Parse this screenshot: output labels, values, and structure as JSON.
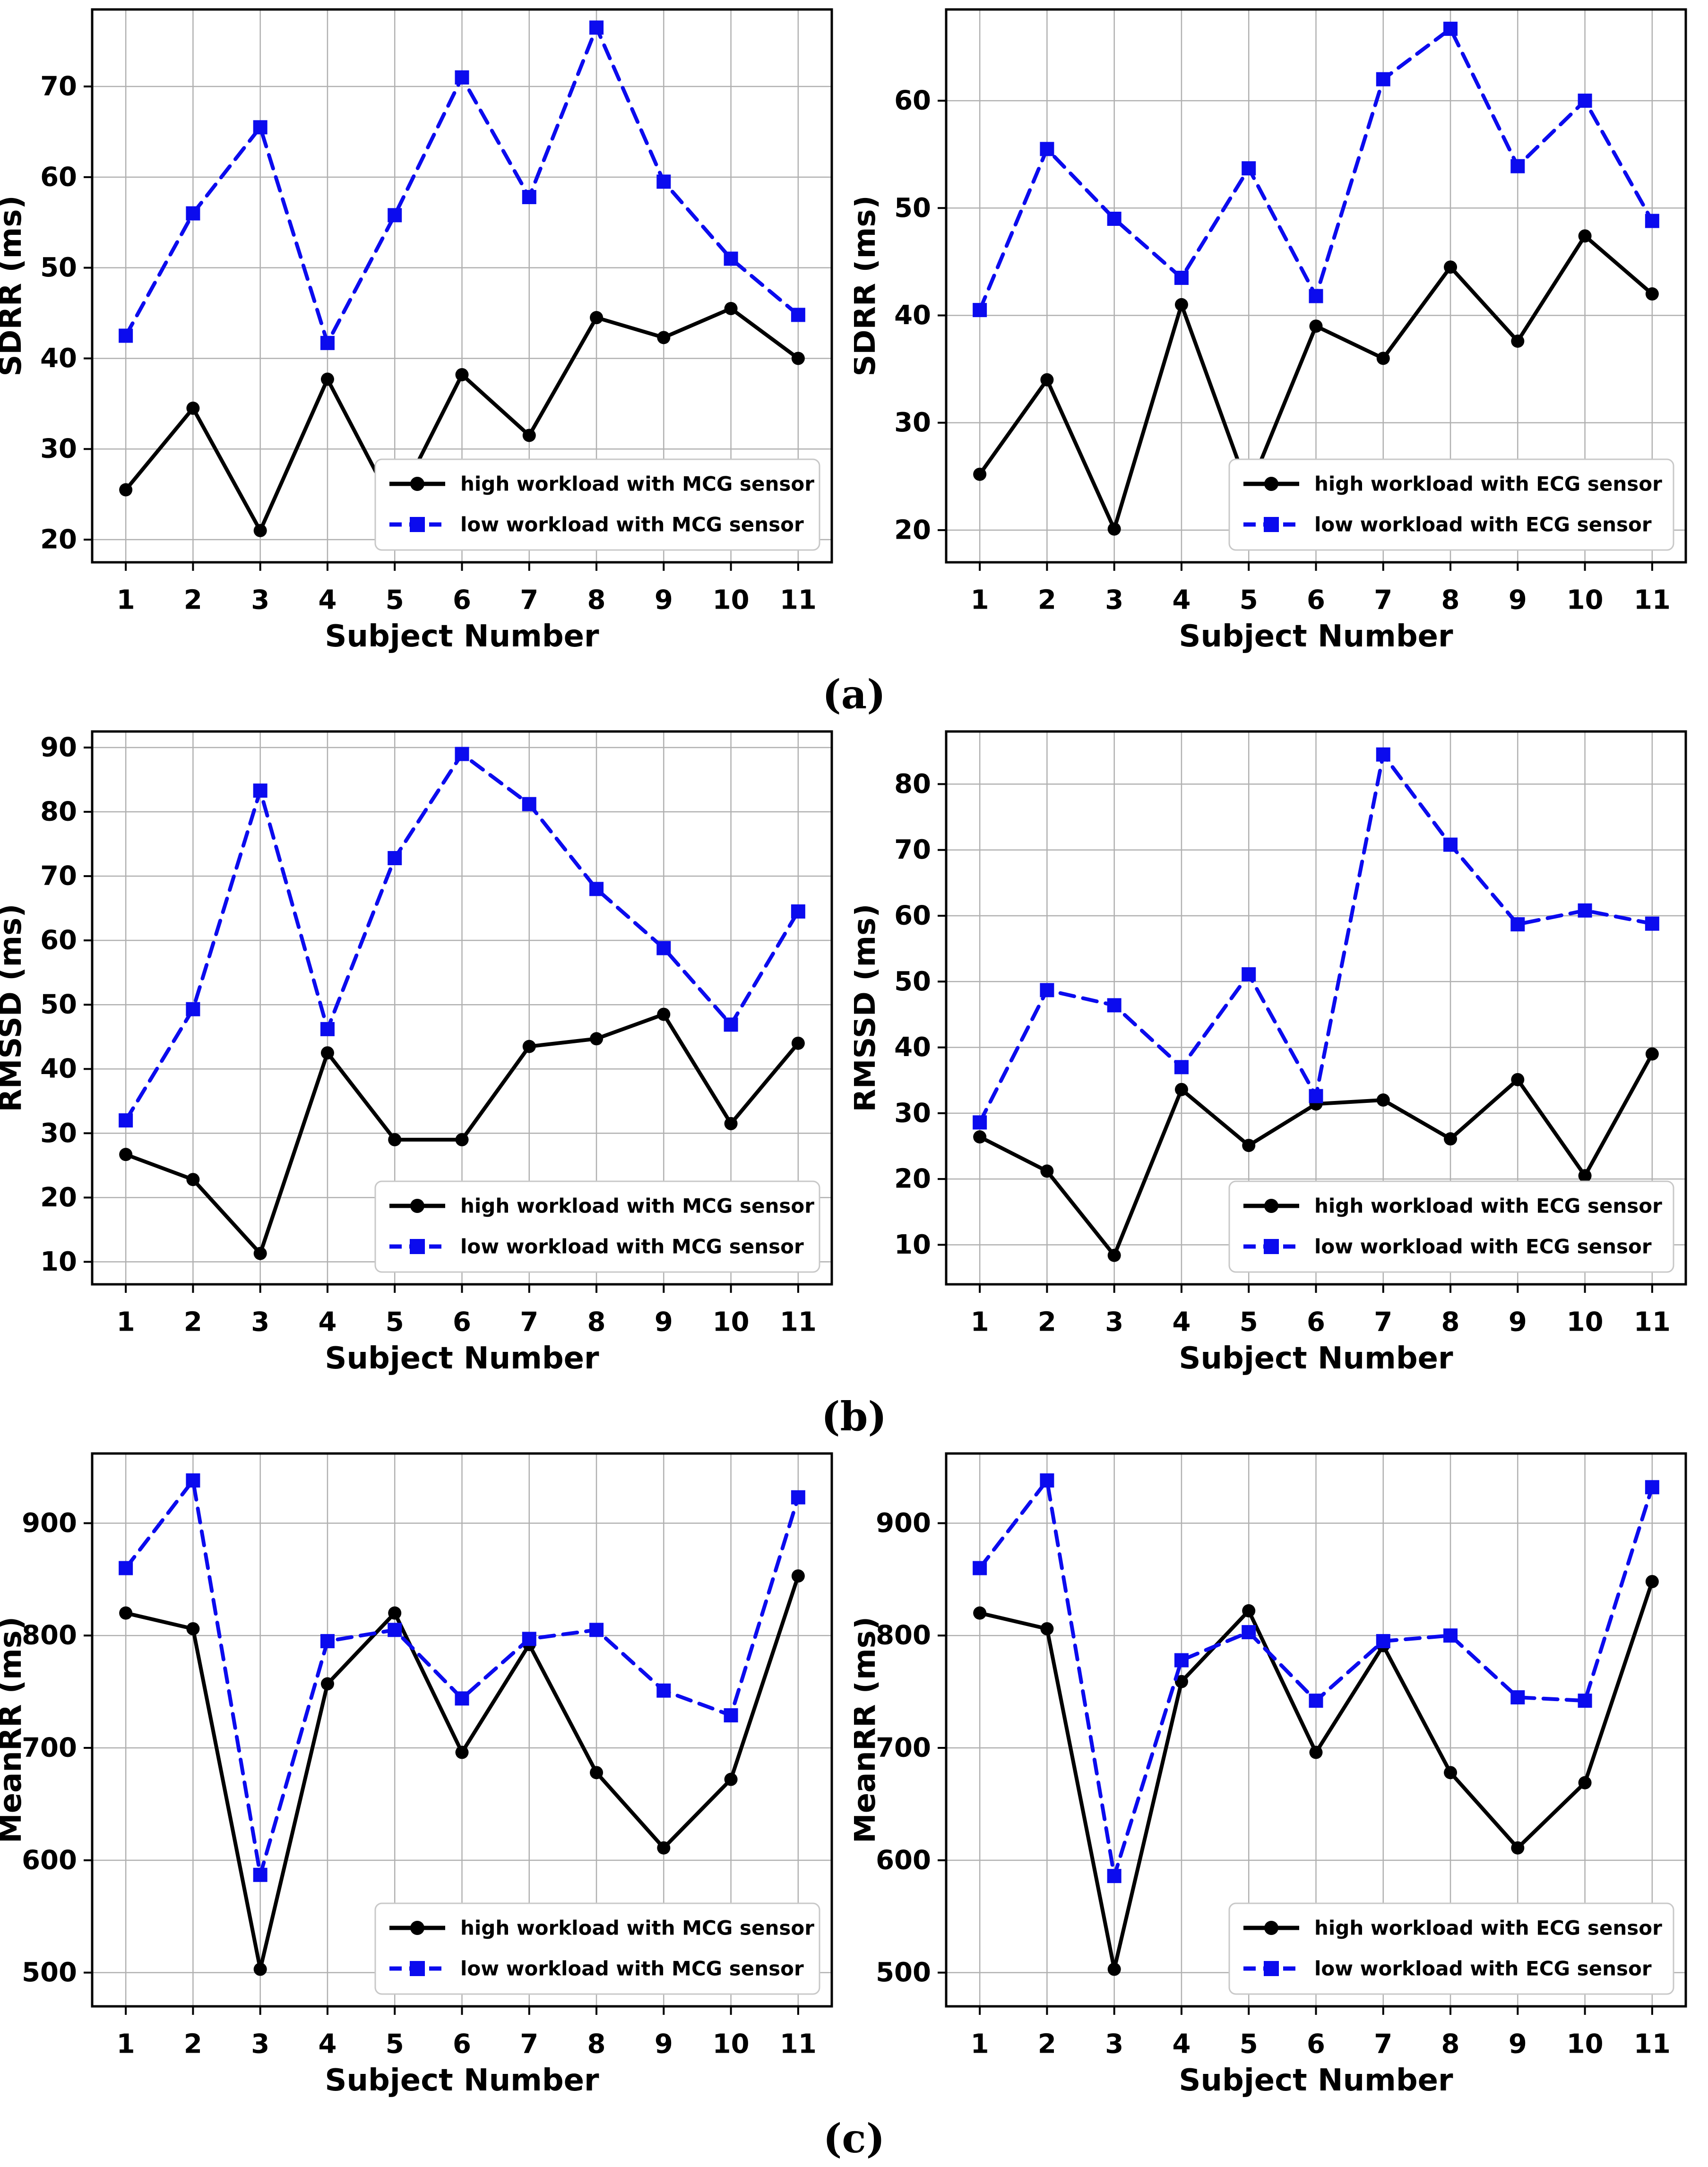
{
  "captions": {
    "a": "(a)",
    "b": "(b)",
    "c": "(c)"
  },
  "colors": {
    "high_workload": "#000000",
    "low_workload": "#0b0bee",
    "grid": "#b0b0b0",
    "spine": "#000000",
    "legend_border": "#c8c8c8"
  },
  "chart_data": [
    {
      "id": "sdrr-mcg",
      "type": "line",
      "title": "",
      "xlabel": "Subject Number",
      "ylabel": "SDRR (ms)",
      "x": [
        1,
        2,
        3,
        4,
        5,
        6,
        7,
        8,
        9,
        10,
        11
      ],
      "xlim": [
        0.5,
        11.5
      ],
      "ylim": [
        17.5,
        78.5
      ],
      "yticks": [
        20,
        30,
        40,
        50,
        60,
        70
      ],
      "grid": true,
      "legend_position": "lower right",
      "series": [
        {
          "name": "high workload with MCG sensor",
          "color": "#000000",
          "linestyle": "solid",
          "marker": "circle",
          "values": [
            25.5,
            34.5,
            21,
            37.7,
            23.5,
            38.2,
            31.5,
            44.5,
            42.3,
            45.5,
            40
          ]
        },
        {
          "name": "low workload with MCG sensor",
          "color": "#0b0bee",
          "linestyle": "dashed",
          "marker": "square",
          "values": [
            42.5,
            56,
            65.5,
            41.7,
            55.8,
            71,
            57.8,
            76.5,
            59.5,
            51,
            44.8
          ]
        }
      ]
    },
    {
      "id": "sdrr-ecg",
      "type": "line",
      "title": "",
      "xlabel": "Subject Number",
      "ylabel": "SDRR (ms)",
      "x": [
        1,
        2,
        3,
        4,
        5,
        6,
        7,
        8,
        9,
        10,
        11
      ],
      "xlim": [
        0.5,
        11.5
      ],
      "ylim": [
        17,
        68.5
      ],
      "yticks": [
        20,
        30,
        40,
        50,
        60
      ],
      "grid": true,
      "legend_position": "lower right",
      "series": [
        {
          "name": "high workload with ECG sensor",
          "color": "#000000",
          "linestyle": "solid",
          "marker": "circle",
          "values": [
            25.2,
            34,
            20.1,
            41,
            23.7,
            39,
            36,
            44.5,
            37.6,
            47.4,
            42
          ]
        },
        {
          "name": "low workload with ECG sensor",
          "color": "#0b0bee",
          "linestyle": "dashed",
          "marker": "square",
          "values": [
            40.5,
            55.5,
            49,
            43.5,
            53.7,
            41.8,
            62,
            66.7,
            53.9,
            60,
            48.8
          ]
        }
      ]
    },
    {
      "id": "rmssd-mcg",
      "type": "line",
      "title": "",
      "xlabel": "Subject Number",
      "ylabel": "RMSSD (ms)",
      "x": [
        1,
        2,
        3,
        4,
        5,
        6,
        7,
        8,
        9,
        10,
        11
      ],
      "xlim": [
        0.5,
        11.5
      ],
      "ylim": [
        6.5,
        92.5
      ],
      "yticks": [
        10,
        20,
        30,
        40,
        50,
        60,
        70,
        80,
        90
      ],
      "grid": true,
      "legend_position": "lower right",
      "series": [
        {
          "name": "high workload with MCG sensor",
          "color": "#000000",
          "linestyle": "solid",
          "marker": "circle",
          "values": [
            26.7,
            22.8,
            11.3,
            42.5,
            29,
            29,
            43.5,
            44.7,
            48.5,
            31.5,
            44
          ]
        },
        {
          "name": "low workload with MCG sensor",
          "color": "#0b0bee",
          "linestyle": "dashed",
          "marker": "square",
          "values": [
            32,
            49.3,
            83.3,
            46.2,
            72.8,
            89,
            81.2,
            68,
            58.8,
            46.9,
            64.5
          ]
        }
      ]
    },
    {
      "id": "rmssd-ecg",
      "type": "line",
      "title": "",
      "xlabel": "Subject Number",
      "ylabel": "RMSSD (ms)",
      "x": [
        1,
        2,
        3,
        4,
        5,
        6,
        7,
        8,
        9,
        10,
        11
      ],
      "xlim": [
        0.5,
        11.5
      ],
      "ylim": [
        4,
        88
      ],
      "yticks": [
        10,
        20,
        30,
        40,
        50,
        60,
        70,
        80
      ],
      "grid": true,
      "legend_position": "lower right",
      "series": [
        {
          "name": "high workload with ECG sensor",
          "color": "#000000",
          "linestyle": "solid",
          "marker": "circle",
          "values": [
            26.4,
            21.2,
            8.4,
            33.6,
            25.1,
            31.4,
            32,
            26.1,
            35.1,
            20.5,
            39
          ]
        },
        {
          "name": "low workload with ECG sensor",
          "color": "#0b0bee",
          "linestyle": "dashed",
          "marker": "square",
          "values": [
            28.6,
            48.7,
            46.4,
            37,
            51.1,
            32.6,
            84.5,
            70.8,
            58.7,
            60.8,
            58.8
          ]
        }
      ]
    },
    {
      "id": "meanrr-mcg",
      "type": "line",
      "title": "",
      "xlabel": "Subject Number",
      "ylabel": "MeanRR (ms)",
      "x": [
        1,
        2,
        3,
        4,
        5,
        6,
        7,
        8,
        9,
        10,
        11
      ],
      "xlim": [
        0.5,
        11.5
      ],
      "ylim": [
        470,
        962
      ],
      "yticks": [
        500,
        600,
        700,
        800,
        900
      ],
      "grid": true,
      "legend_position": "lower right",
      "series": [
        {
          "name": "high workload with MCG sensor",
          "color": "#000000",
          "linestyle": "solid",
          "marker": "circle",
          "values": [
            820,
            806,
            503,
            757,
            820,
            696,
            792,
            678,
            611,
            672,
            853
          ]
        },
        {
          "name": "low workload with MCG sensor",
          "color": "#0b0bee",
          "linestyle": "dashed",
          "marker": "square",
          "values": [
            860,
            938,
            587,
            795,
            805,
            744,
            797,
            805,
            751,
            729,
            923
          ]
        }
      ]
    },
    {
      "id": "meanrr-ecg",
      "type": "line",
      "title": "",
      "xlabel": "Subject Number",
      "ylabel": "MeanRR (ms)",
      "x": [
        1,
        2,
        3,
        4,
        5,
        6,
        7,
        8,
        9,
        10,
        11
      ],
      "xlim": [
        0.5,
        11.5
      ],
      "ylim": [
        470,
        962
      ],
      "yticks": [
        500,
        600,
        700,
        800,
        900
      ],
      "grid": true,
      "legend_position": "lower right",
      "series": [
        {
          "name": "high workload with ECG sensor",
          "color": "#000000",
          "linestyle": "solid",
          "marker": "circle",
          "values": [
            820,
            806,
            503,
            759,
            822,
            696,
            791,
            678,
            611,
            669,
            848
          ]
        },
        {
          "name": "low workload with ECG sensor",
          "color": "#0b0bee",
          "linestyle": "dashed",
          "marker": "square",
          "values": [
            860,
            938,
            586,
            778,
            803,
            742,
            795,
            800,
            745,
            742,
            932
          ]
        }
      ]
    }
  ]
}
